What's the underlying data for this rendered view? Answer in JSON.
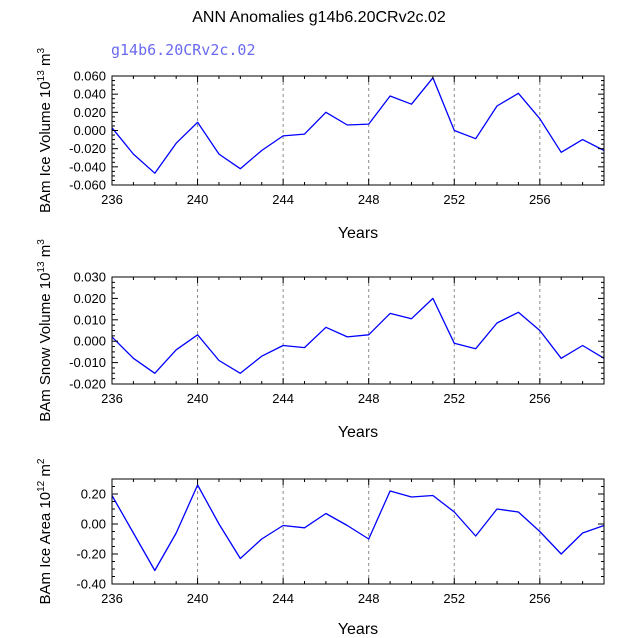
{
  "figure": {
    "title": "ANN Anomalies g14b6.20CRv2c.02",
    "subtitle": "g14b6.20CRv2c.02",
    "subtitle_color": "#6a6af0",
    "line_color": "#0000ff",
    "grid_color": "#8c8c8c"
  },
  "chart_data": [
    {
      "type": "line",
      "name": "ice-volume",
      "ylabel_parts": [
        "BAm Ice Volume 10",
        "13",
        " m",
        "3"
      ],
      "xlabel": "Years",
      "xlim": [
        236,
        259
      ],
      "ylim": [
        -0.06,
        0.06
      ],
      "xticks": [
        236,
        240,
        244,
        248,
        252,
        256
      ],
      "yticks": [
        -0.06,
        -0.04,
        -0.02,
        0.0,
        0.02,
        0.04,
        0.06
      ],
      "ytick_labels": [
        "-0.060",
        "-0.040",
        "-0.020",
        "0.000",
        "0.020",
        "0.040",
        "0.060"
      ],
      "gridlines_x": [
        240,
        244,
        248,
        252,
        256
      ],
      "x": [
        236,
        237,
        238,
        239,
        240,
        241,
        242,
        243,
        244,
        245,
        246,
        247,
        248,
        249,
        250,
        251,
        252,
        253,
        254,
        255,
        256,
        257,
        258,
        259
      ],
      "y": [
        0.003,
        -0.026,
        -0.047,
        -0.014,
        0.009,
        -0.026,
        -0.042,
        -0.022,
        -0.006,
        -0.004,
        0.02,
        0.006,
        0.007,
        0.038,
        0.029,
        0.058,
        0.0,
        -0.009,
        0.027,
        0.041,
        0.013,
        -0.024,
        -0.01,
        -0.022
      ]
    },
    {
      "type": "line",
      "name": "snow-volume",
      "ylabel_parts": [
        "BAm Snow Volume 10",
        "13",
        " m",
        "3"
      ],
      "xlabel": "Years",
      "xlim": [
        236,
        259
      ],
      "ylim": [
        -0.02,
        0.03
      ],
      "xticks": [
        236,
        240,
        244,
        248,
        252,
        256
      ],
      "yticks": [
        -0.02,
        -0.01,
        0.0,
        0.01,
        0.02,
        0.03
      ],
      "ytick_labels": [
        "-0.020",
        "-0.010",
        "0.000",
        "0.010",
        "0.020",
        "0.030"
      ],
      "gridlines_x": [
        240,
        244,
        248,
        252,
        256
      ],
      "x": [
        236,
        237,
        238,
        239,
        240,
        241,
        242,
        243,
        244,
        245,
        246,
        247,
        248,
        249,
        250,
        251,
        252,
        253,
        254,
        255,
        256,
        257,
        258,
        259
      ],
      "y": [
        0.002,
        -0.008,
        -0.015,
        -0.004,
        0.003,
        -0.009,
        -0.015,
        -0.007,
        -0.002,
        -0.003,
        0.0065,
        0.002,
        0.003,
        0.013,
        0.0105,
        0.02,
        -0.001,
        -0.0035,
        0.0085,
        0.0135,
        0.005,
        -0.008,
        -0.002,
        -0.008
      ]
    },
    {
      "type": "line",
      "name": "ice-area",
      "ylabel_parts": [
        "BAm Ice Area 10",
        "12",
        " m",
        "2"
      ],
      "xlabel": "Years",
      "xlim": [
        236,
        259
      ],
      "ylim": [
        -0.4,
        0.3
      ],
      "xticks": [
        236,
        240,
        244,
        248,
        252,
        256
      ],
      "yticks": [
        -0.4,
        -0.2,
        0.0,
        0.2
      ],
      "ytick_labels": [
        "-0.40",
        "-0.20",
        "0.00",
        "0.20"
      ],
      "gridlines_x": [
        240,
        244,
        248,
        252,
        256
      ],
      "x": [
        236,
        237,
        238,
        239,
        240,
        241,
        242,
        243,
        244,
        245,
        246,
        247,
        248,
        249,
        250,
        251,
        252,
        253,
        254,
        255,
        256,
        257,
        258,
        259
      ],
      "y": [
        0.19,
        -0.06,
        -0.31,
        -0.06,
        0.26,
        0.0,
        -0.23,
        -0.1,
        -0.01,
        -0.025,
        0.07,
        -0.01,
        -0.1,
        0.22,
        0.18,
        0.19,
        0.08,
        -0.08,
        0.1,
        0.08,
        -0.05,
        -0.2,
        -0.06,
        -0.01
      ]
    }
  ]
}
